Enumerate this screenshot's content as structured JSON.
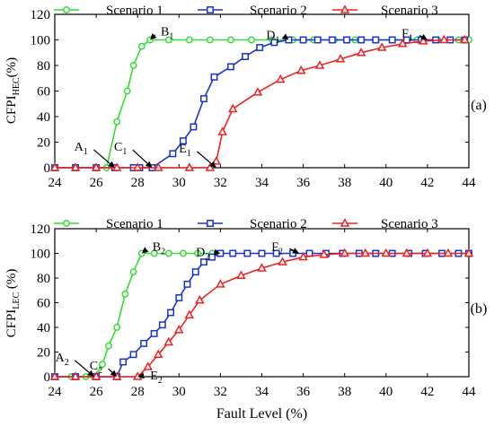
{
  "chart_data": [
    {
      "type": "line",
      "panel_label": "(a)",
      "ylabel": "CFPI_HEC(%)",
      "ylabel_main": "CFPI",
      "ylabel_sub": "HEC",
      "ylabel_unit": "(%)",
      "xlim": [
        24,
        44
      ],
      "ylim": [
        0,
        120
      ],
      "xticks": [
        "24",
        "26",
        "28",
        "30",
        "32",
        "34",
        "36",
        "38",
        "40",
        "42",
        "44"
      ],
      "yticks": [
        "0",
        "20",
        "40",
        "60",
        "80",
        "100",
        "120"
      ],
      "legend": "top",
      "series": [
        {
          "name": "Scenario 1",
          "color": "#33dd33",
          "marker": "circle",
          "x": [
            24,
            25,
            26,
            26.5,
            27,
            27.5,
            27.8,
            28.2,
            28.6,
            29.5,
            30.5,
            31.5,
            32.5,
            33.5,
            34.5,
            35.5,
            36.5,
            37.5,
            38.5,
            39.5,
            40.3,
            41.5,
            42.5,
            43.5,
            44
          ],
          "y": [
            0,
            0,
            0,
            0,
            36,
            60,
            80,
            95,
            100,
            100,
            100,
            100,
            100,
            100,
            100,
            100,
            100,
            100,
            100,
            100,
            100,
            100,
            100,
            100,
            100
          ]
        },
        {
          "name": "Scenario 2",
          "color": "#1a33cc",
          "marker": "square",
          "x": [
            24,
            25,
            26,
            26.9,
            27.8,
            28.1,
            28.7,
            29.7,
            30.2,
            30.7,
            31.2,
            31.7,
            32.5,
            33.2,
            33.9,
            34.6,
            35.3,
            36,
            36.7,
            37.4,
            38.1,
            38.8,
            39.5,
            40.3,
            41,
            41.7,
            42.4,
            43.1,
            43.8
          ],
          "y": [
            0,
            0,
            0,
            0,
            0,
            0,
            0,
            11,
            21,
            32,
            54,
            71,
            79,
            87,
            94,
            98,
            100,
            100,
            100,
            100,
            100,
            100,
            100,
            100,
            100,
            100,
            100,
            100,
            100
          ]
        },
        {
          "name": "Scenario 3",
          "color": "#ee2222",
          "marker": "triangle",
          "x": [
            24,
            25,
            26,
            27,
            28,
            29,
            30.5,
            31.5,
            31.8,
            32.1,
            32.6,
            33.8,
            34.9,
            35.9,
            36.8,
            37.8,
            38.8,
            39.8,
            40.8,
            41.8,
            42.8,
            43.8
          ],
          "y": [
            0,
            0,
            0,
            0,
            0,
            0,
            0,
            0,
            5,
            28,
            46,
            59,
            69,
            76,
            80,
            85,
            90,
            94,
            97,
            99,
            100,
            100
          ]
        }
      ],
      "annotations": [
        {
          "base": "A",
          "sub": "1",
          "x": 26.9,
          "y": 0
        },
        {
          "base": "B",
          "sub": "1",
          "x": 28.6,
          "y": 100
        },
        {
          "base": "C",
          "sub": "1",
          "x": 28.7,
          "y": 0
        },
        {
          "base": "D",
          "sub": "1",
          "x": 35.3,
          "y": 100
        },
        {
          "base": "E",
          "sub": "1",
          "x": 31.8,
          "y": 0
        },
        {
          "base": "F",
          "sub": "1",
          "x": 42.0,
          "y": 100
        }
      ]
    },
    {
      "type": "line",
      "panel_label": "(b)",
      "xlabel": "Fault Level (%)",
      "ylabel": "CFPI_LEC (%)",
      "ylabel_main": "CFPI",
      "ylabel_sub": "LEC",
      "ylabel_unit": " (%)",
      "xlim": [
        24,
        44
      ],
      "ylim": [
        0,
        120
      ],
      "xticks": [
        "24",
        "26",
        "28",
        "30",
        "32",
        "34",
        "36",
        "38",
        "40",
        "42",
        "44"
      ],
      "yticks": [
        "0",
        "20",
        "40",
        "60",
        "80",
        "100",
        "120"
      ],
      "legend": "top",
      "series": [
        {
          "name": "Scenario 1",
          "color": "#33dd33",
          "marker": "circle",
          "x": [
            24,
            24.8,
            25.5,
            25.9,
            26.3,
            26.6,
            27,
            27.4,
            27.8,
            28.2,
            28.8,
            29.5,
            30.2,
            30.9,
            31.6
          ],
          "y": [
            0,
            0,
            0,
            0,
            10,
            25,
            40,
            67,
            85,
            100,
            100,
            100,
            100,
            100,
            100
          ]
        },
        {
          "name": "Scenario 2",
          "color": "#1a33cc",
          "marker": "square",
          "x": [
            24,
            25,
            26,
            27,
            27.3,
            27.8,
            28.3,
            28.8,
            29.2,
            29.6,
            30,
            30.4,
            30.8,
            31.2,
            31.6,
            32,
            32.6,
            33.3,
            34,
            34.7,
            35.5,
            36.3,
            37.1,
            37.9,
            38.7,
            39.5,
            40.3,
            41.1,
            41.9,
            42.7,
            43.5,
            44
          ],
          "y": [
            0,
            0,
            0,
            0,
            12,
            18,
            27,
            35,
            42,
            52,
            64,
            75,
            85,
            93,
            97,
            100,
            100,
            100,
            100,
            100,
            100,
            100,
            100,
            100,
            100,
            100,
            100,
            100,
            100,
            100,
            100,
            100
          ]
        },
        {
          "name": "Scenario 3",
          "color": "#ee2222",
          "marker": "triangle",
          "x": [
            24,
            25,
            26,
            27,
            28,
            28.5,
            29,
            29.5,
            30,
            30.5,
            31,
            32,
            33,
            34,
            35,
            36,
            37,
            38,
            39,
            40,
            41,
            42,
            43,
            44
          ],
          "y": [
            0,
            0,
            0,
            0,
            0,
            8,
            18,
            28,
            38,
            50,
            62,
            75,
            82,
            88,
            93,
            97,
            99,
            100,
            100,
            100,
            100,
            100,
            100,
            100
          ]
        }
      ],
      "annotations": [
        {
          "base": "A",
          "sub": "2",
          "x": 25.9,
          "y": 0
        },
        {
          "base": "B",
          "sub": "2",
          "x": 28.2,
          "y": 100
        },
        {
          "base": "C",
          "sub": "2",
          "x": 27.0,
          "y": 0
        },
        {
          "base": "D",
          "sub": "2",
          "x": 32.0,
          "y": 100
        },
        {
          "base": "E",
          "sub": "2",
          "x": 28.0,
          "y": 0
        },
        {
          "base": "F",
          "sub": "2",
          "x": 35.8,
          "y": 100
        }
      ]
    }
  ]
}
